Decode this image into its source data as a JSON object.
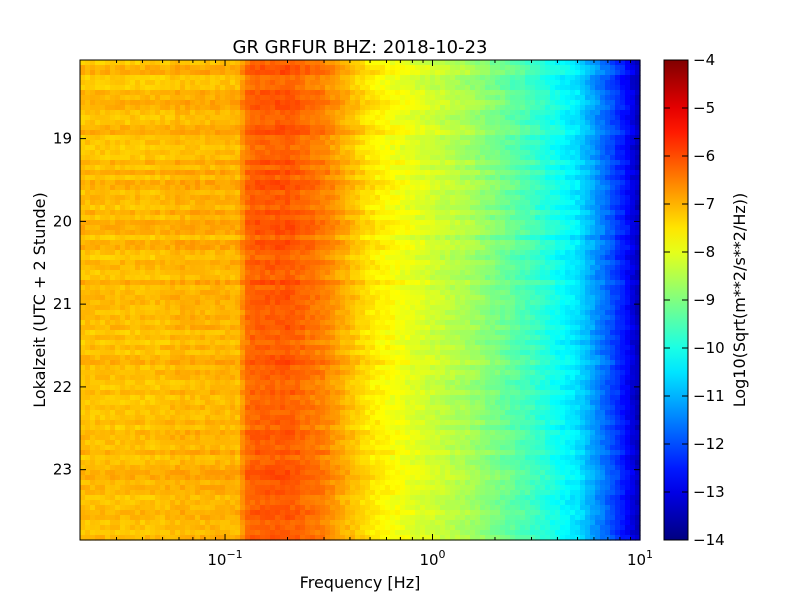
{
  "chart_data": {
    "type": "heatmap",
    "title": "GR GRFUR BHZ: 2018-10-23",
    "xlabel": "Frequency [Hz]",
    "ylabel": "Lokalzeit (UTC + 2 Stunde)",
    "x_scale": "log",
    "xlim": [
      0.02,
      10
    ],
    "ylim": [
      18.05,
      23.85
    ],
    "x_ticks": [
      {
        "value": 0.1,
        "base": "10",
        "exp": "−1"
      },
      {
        "value": 1,
        "base": "10",
        "exp": "0"
      },
      {
        "value": 10,
        "base": "10",
        "exp": "1"
      }
    ],
    "y_ticks": [
      19,
      20,
      21,
      22,
      23
    ],
    "colorbar": {
      "label": "Log10(Sqrt(m**2/s**2/Hz))",
      "range": [
        -14,
        -4
      ],
      "ticks": [
        "−4",
        "−5",
        "−6",
        "−7",
        "−8",
        "−9",
        "−10",
        "−11",
        "−12",
        "−13",
        "−14"
      ],
      "colormap": "jet"
    },
    "spectrum_profile": [
      {
        "frequency": 0.02,
        "value": -7.1
      },
      {
        "frequency": 0.05,
        "value": -7.1
      },
      {
        "frequency": 0.06,
        "value": -7.0
      },
      {
        "frequency": 0.115,
        "value": -7.0
      },
      {
        "frequency": 0.13,
        "value": -6.2
      },
      {
        "frequency": 0.2,
        "value": -6.1
      },
      {
        "frequency": 0.3,
        "value": -6.5
      },
      {
        "frequency": 0.5,
        "value": -7.5
      },
      {
        "frequency": 0.8,
        "value": -8.0
      },
      {
        "frequency": 1.5,
        "value": -8.6
      },
      {
        "frequency": 3.0,
        "value": -9.6
      },
      {
        "frequency": 5.0,
        "value": -10.5
      },
      {
        "frequency": 7.0,
        "value": -11.8
      },
      {
        "frequency": 8.5,
        "value": -12.6
      },
      {
        "frequency": 10,
        "value": -13.5
      }
    ]
  }
}
